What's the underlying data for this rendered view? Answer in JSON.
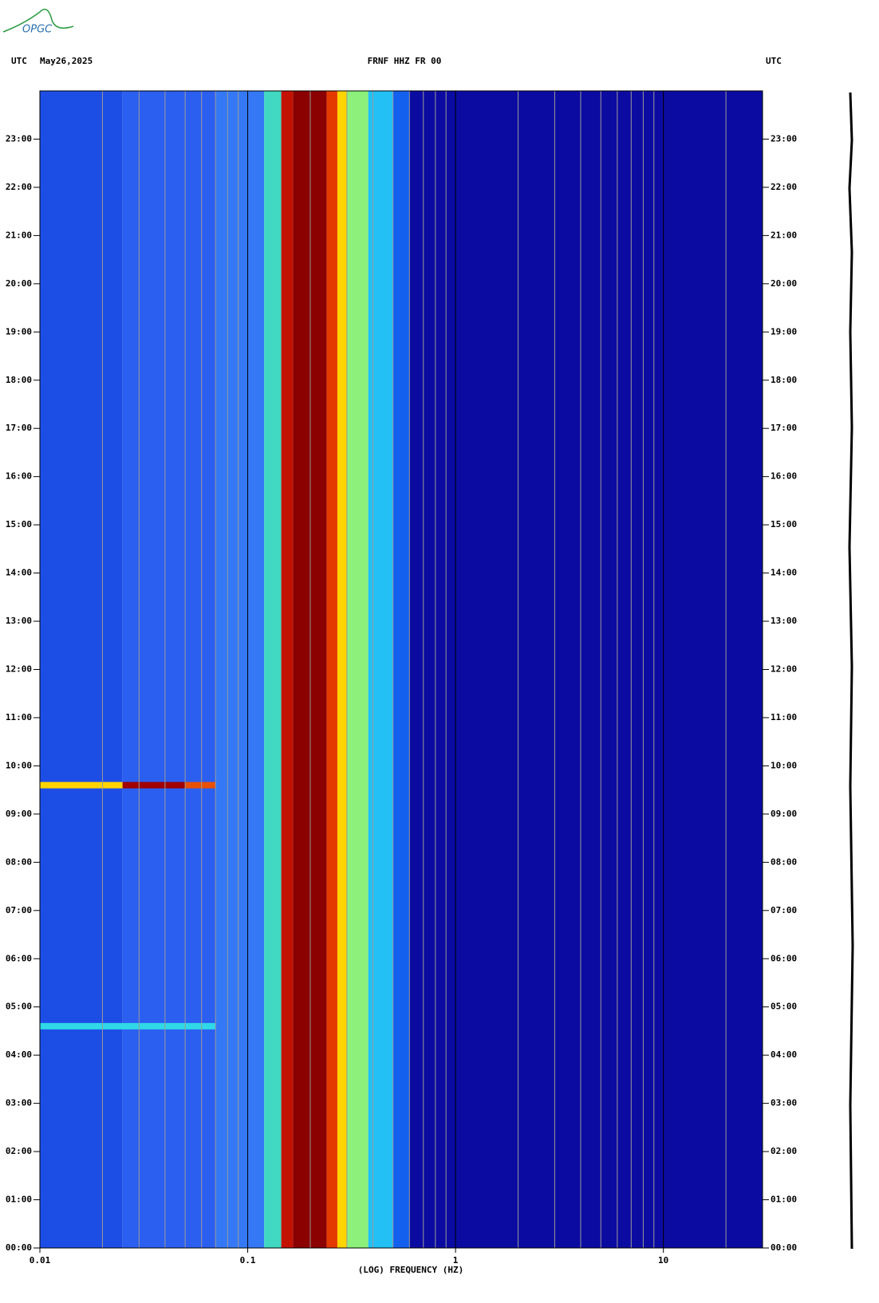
{
  "logo": "OPGC",
  "chart_data": {
    "type": "spectrogram",
    "title": "FRNF HHZ FR 00",
    "left_label": "UTC",
    "date": "May26,2025",
    "right_label": "UTC",
    "x_label": "(LOG) FREQUENCY (HZ)",
    "xscale": "log",
    "xlim": [
      0.01,
      30
    ],
    "xticks": [
      0.01,
      0.1,
      1,
      10
    ],
    "xminorticks": [
      0.02,
      0.03,
      0.04,
      0.05,
      0.06,
      0.07,
      0.08,
      0.09,
      0.2,
      0.3,
      0.4,
      0.5,
      0.6,
      0.7,
      0.8,
      0.9,
      2,
      3,
      4,
      5,
      6,
      7,
      8,
      9,
      20
    ],
    "ylim": [
      0,
      24
    ],
    "yticks": [
      {
        "value": 0,
        "label": "00:00"
      },
      {
        "value": 1,
        "label": "01:00"
      },
      {
        "value": 2,
        "label": "02:00"
      },
      {
        "value": 3,
        "label": "03:00"
      },
      {
        "value": 4,
        "label": "04:00"
      },
      {
        "value": 5,
        "label": "05:00"
      },
      {
        "value": 6,
        "label": "06:00"
      },
      {
        "value": 7,
        "label": "07:00"
      },
      {
        "value": 8,
        "label": "08:00"
      },
      {
        "value": 9,
        "label": "09:00"
      },
      {
        "value": 10,
        "label": "10:00"
      },
      {
        "value": 11,
        "label": "11:00"
      },
      {
        "value": 12,
        "label": "12:00"
      },
      {
        "value": 13,
        "label": "13:00"
      },
      {
        "value": 14,
        "label": "14:00"
      },
      {
        "value": 15,
        "label": "15:00"
      },
      {
        "value": 16,
        "label": "16:00"
      },
      {
        "value": 17,
        "label": "17:00"
      },
      {
        "value": 18,
        "label": "18:00"
      },
      {
        "value": 19,
        "label": "19:00"
      },
      {
        "value": 20,
        "label": "20:00"
      },
      {
        "value": 21,
        "label": "21:00"
      },
      {
        "value": 22,
        "label": "22:00"
      },
      {
        "value": 23,
        "label": "23:00"
      }
    ],
    "bands": [
      {
        "x": [
          0.01,
          0.025
        ],
        "color": "#1c4ee6"
      },
      {
        "x": [
          0.025,
          0.07
        ],
        "color": "#2a5ff0"
      },
      {
        "x": [
          0.07,
          0.12
        ],
        "color": "#3478f5"
      },
      {
        "x": [
          0.12,
          0.145
        ],
        "color": "#40d8c0"
      },
      {
        "x": [
          0.145,
          0.165
        ],
        "color": "#c41200"
      },
      {
        "x": [
          0.165,
          0.24
        ],
        "color": "#8b0000"
      },
      {
        "x": [
          0.24,
          0.27
        ],
        "color": "#e43a00"
      },
      {
        "x": [
          0.27,
          0.3
        ],
        "color": "#ffd400"
      },
      {
        "x": [
          0.3,
          0.38
        ],
        "color": "#8cf07a"
      },
      {
        "x": [
          0.38,
          0.5
        ],
        "color": "#22c0f5"
      },
      {
        "x": [
          0.5,
          0.6
        ],
        "color": "#1460ee"
      },
      {
        "x": [
          0.6,
          30
        ],
        "color": "#0b0ba2"
      }
    ],
    "events": [
      {
        "y": 9.6,
        "x": [
          0.01,
          0.025
        ],
        "color": "#ffd400"
      },
      {
        "y": 9.6,
        "x": [
          0.025,
          0.05
        ],
        "color": "#a00000"
      },
      {
        "y": 9.6,
        "x": [
          0.05,
          0.07
        ],
        "color": "#e85000"
      },
      {
        "y": 4.6,
        "x": [
          0.01,
          0.07
        ],
        "color": "#30d8e8"
      }
    ]
  }
}
